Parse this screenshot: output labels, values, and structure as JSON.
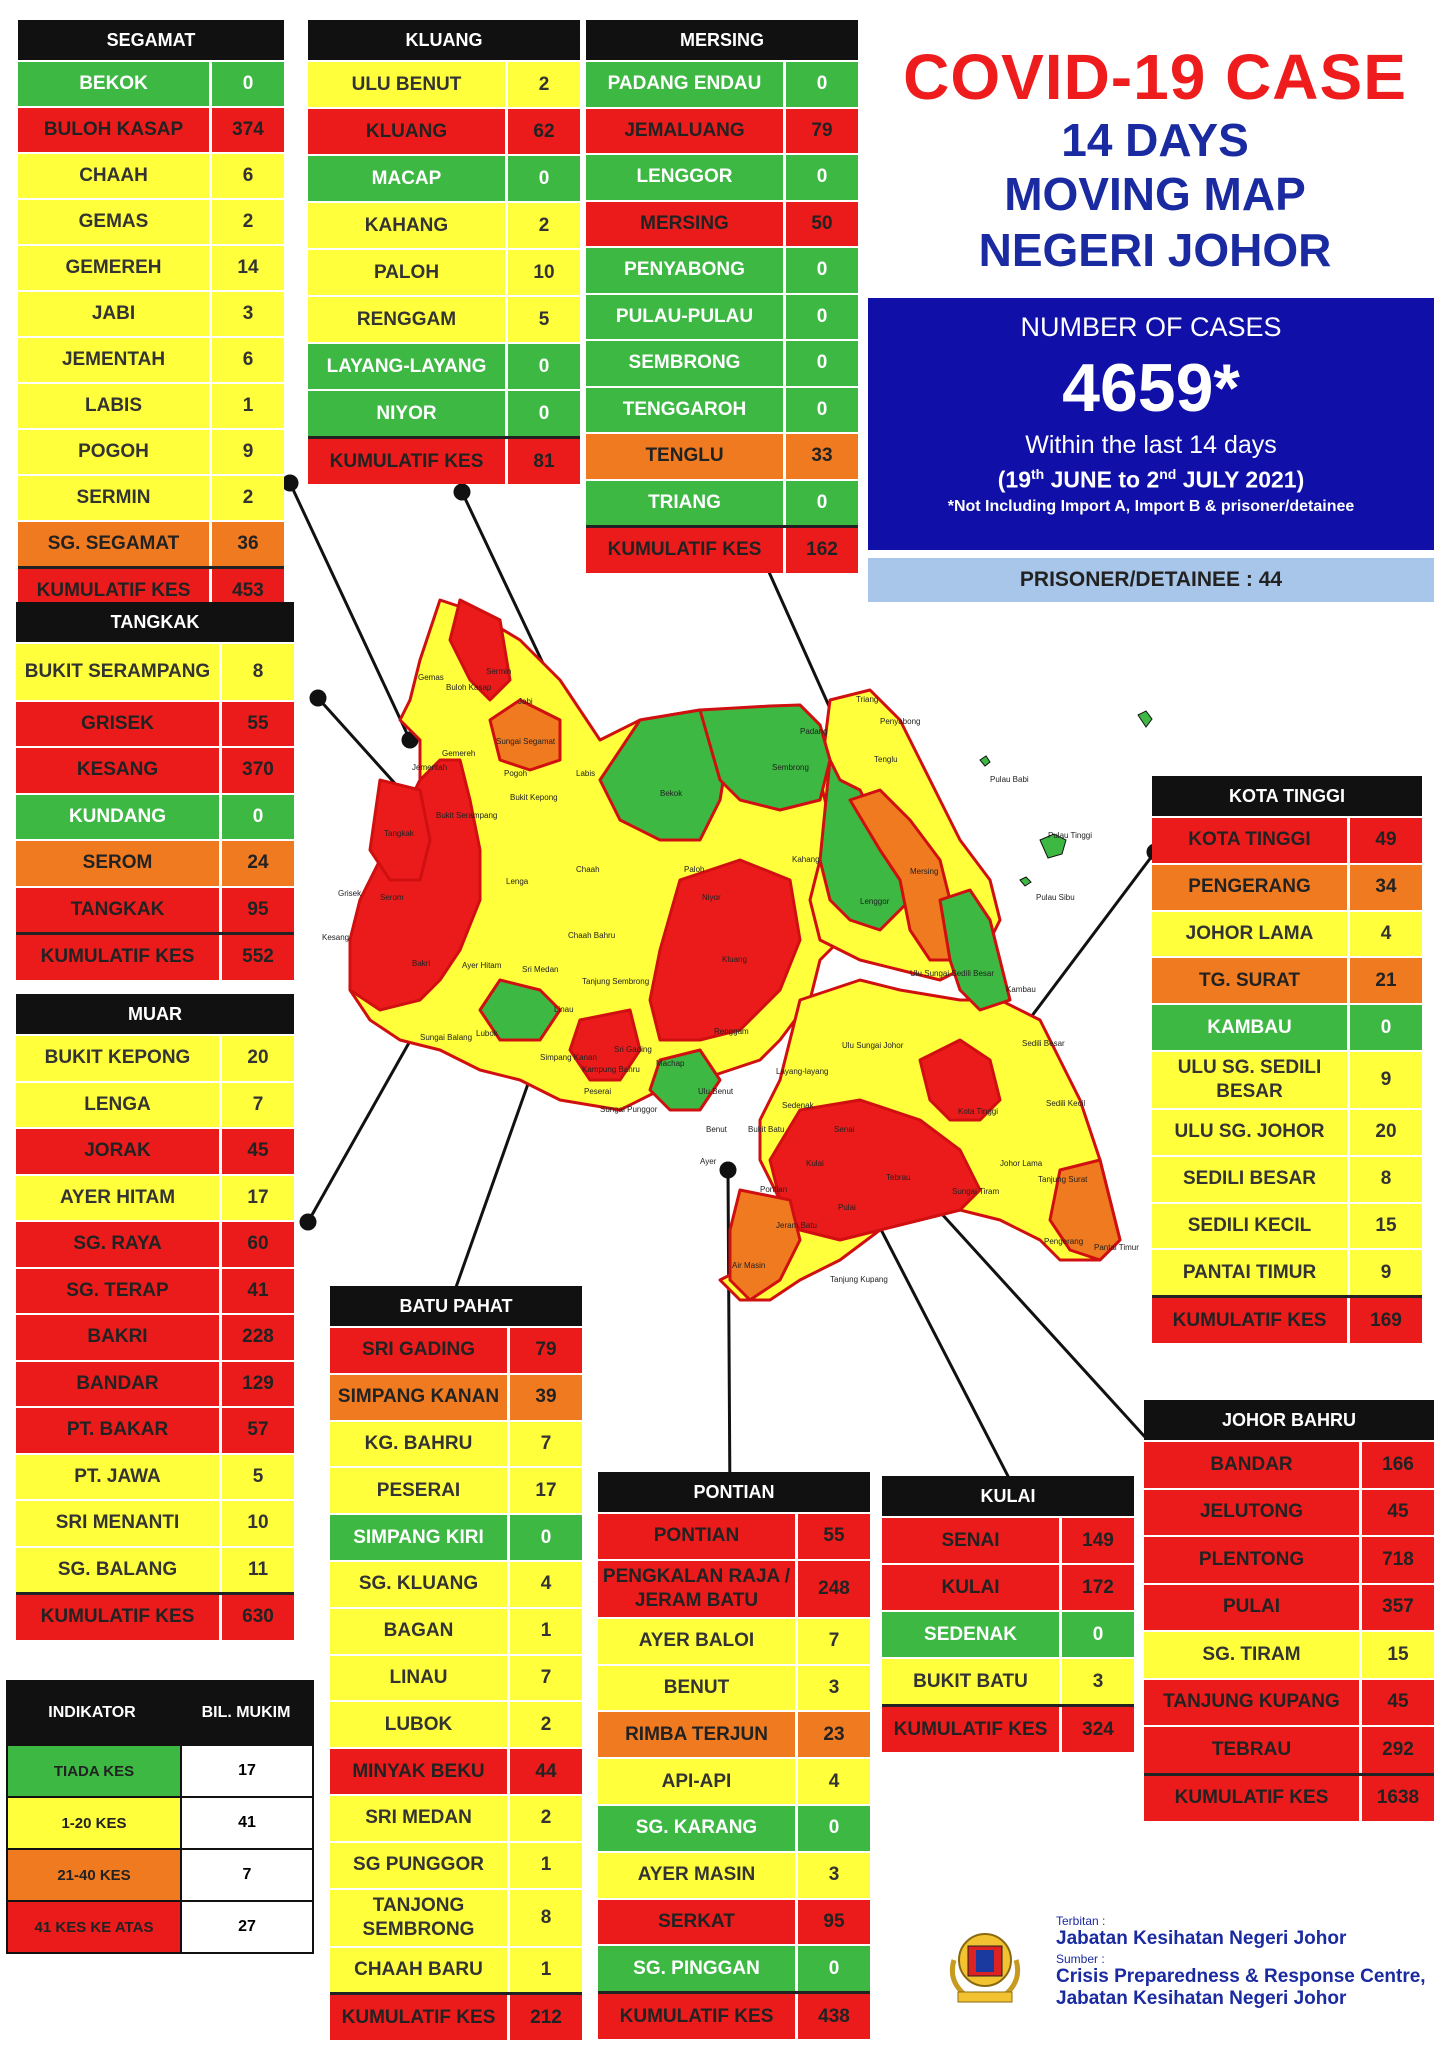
{
  "header": {
    "title": "COVID-19 CASE",
    "line1": "14 DAYS",
    "line2": "MOVING MAP",
    "line3": "NEGERI JOHOR"
  },
  "summary": {
    "label": "NUMBER OF CASES",
    "total": "4659*",
    "within": "Within the last 14 days",
    "range_open": "(19",
    "range_sup1": "th",
    "range_mid": " JUNE to 2",
    "range_sup2": "nd",
    "range_close": " JULY 2021)",
    "note": "*Not Including Import A, Import B & prisoner/detainee",
    "prisoner": "PRISONER/DETAINEE : 44"
  },
  "colors": {
    "green": "#3cb843",
    "yellow": "#ffff3c",
    "orange": "#f07a20",
    "red": "#ec1b1b",
    "navy": "#1010a8",
    "title_red": "#ee1c1c"
  },
  "districts": {
    "segamat": {
      "name": "SEGAMAT",
      "rows": [
        {
          "n": "BEKOK",
          "v": "0",
          "c": "g"
        },
        {
          "n": "BULOH KASAP",
          "v": "374",
          "c": "r"
        },
        {
          "n": "CHAAH",
          "v": "6",
          "c": "y"
        },
        {
          "n": "GEMAS",
          "v": "2",
          "c": "y"
        },
        {
          "n": "GEMEREH",
          "v": "14",
          "c": "y"
        },
        {
          "n": "JABI",
          "v": "3",
          "c": "y"
        },
        {
          "n": "JEMENTAH",
          "v": "6",
          "c": "y"
        },
        {
          "n": "LABIS",
          "v": "1",
          "c": "y"
        },
        {
          "n": "POGOH",
          "v": "9",
          "c": "y"
        },
        {
          "n": "SERMIN",
          "v": "2",
          "c": "y"
        },
        {
          "n": "SG. SEGAMAT",
          "v": "36",
          "c": "o"
        },
        {
          "n": "KUMULATIF KES",
          "v": "453",
          "c": "kum"
        }
      ]
    },
    "kluang": {
      "name": "KLUANG",
      "rows": [
        {
          "n": "ULU BENUT",
          "v": "2",
          "c": "y"
        },
        {
          "n": "KLUANG",
          "v": "62",
          "c": "r"
        },
        {
          "n": "MACAP",
          "v": "0",
          "c": "g"
        },
        {
          "n": "KAHANG",
          "v": "2",
          "c": "y"
        },
        {
          "n": "PALOH",
          "v": "10",
          "c": "y"
        },
        {
          "n": "RENGGAM",
          "v": "5",
          "c": "y"
        },
        {
          "n": "LAYANG-LAYANG",
          "v": "0",
          "c": "g"
        },
        {
          "n": "NIYOR",
          "v": "0",
          "c": "g"
        },
        {
          "n": "KUMULATIF KES",
          "v": "81",
          "c": "kum"
        }
      ]
    },
    "mersing": {
      "name": "MERSING",
      "rows": [
        {
          "n": "PADANG ENDAU",
          "v": "0",
          "c": "g"
        },
        {
          "n": "JEMALUANG",
          "v": "79",
          "c": "r"
        },
        {
          "n": "LENGGOR",
          "v": "0",
          "c": "g"
        },
        {
          "n": "MERSING",
          "v": "50",
          "c": "r"
        },
        {
          "n": "PENYABONG",
          "v": "0",
          "c": "g"
        },
        {
          "n": "PULAU-PULAU",
          "v": "0",
          "c": "g"
        },
        {
          "n": "SEMBRONG",
          "v": "0",
          "c": "g"
        },
        {
          "n": "TENGGAROH",
          "v": "0",
          "c": "g"
        },
        {
          "n": "TENGLU",
          "v": "33",
          "c": "o"
        },
        {
          "n": "TRIANG",
          "v": "0",
          "c": "g"
        },
        {
          "n": "KUMULATIF KES",
          "v": "162",
          "c": "kum"
        }
      ]
    },
    "tangkak": {
      "name": "TANGKAK",
      "rows": [
        {
          "n": "BUKIT SERAMPANG",
          "v": "8",
          "c": "y"
        },
        {
          "n": "GRISEK",
          "v": "55",
          "c": "r"
        },
        {
          "n": "KESANG",
          "v": "370",
          "c": "r"
        },
        {
          "n": "KUNDANG",
          "v": "0",
          "c": "g"
        },
        {
          "n": "SEROM",
          "v": "24",
          "c": "o"
        },
        {
          "n": "TANGKAK",
          "v": "95",
          "c": "r"
        },
        {
          "n": "KUMULATIF KES",
          "v": "552",
          "c": "kum"
        }
      ]
    },
    "muar": {
      "name": "MUAR",
      "rows": [
        {
          "n": "BUKIT KEPONG",
          "v": "20",
          "c": "y"
        },
        {
          "n": "LENGA",
          "v": "7",
          "c": "y"
        },
        {
          "n": "JORAK",
          "v": "45",
          "c": "r"
        },
        {
          "n": "AYER HITAM",
          "v": "17",
          "c": "y"
        },
        {
          "n": "SG. RAYA",
          "v": "60",
          "c": "r"
        },
        {
          "n": "SG. TERAP",
          "v": "41",
          "c": "r"
        },
        {
          "n": "BAKRI",
          "v": "228",
          "c": "r"
        },
        {
          "n": "BANDAR",
          "v": "129",
          "c": "r"
        },
        {
          "n": "PT. BAKAR",
          "v": "57",
          "c": "r"
        },
        {
          "n": "PT. JAWA",
          "v": "5",
          "c": "y"
        },
        {
          "n": "SRI MENANTI",
          "v": "10",
          "c": "y"
        },
        {
          "n": "SG. BALANG",
          "v": "11",
          "c": "y"
        },
        {
          "n": "KUMULATIF KES",
          "v": "630",
          "c": "kum"
        }
      ]
    },
    "batupahat": {
      "name": "BATU PAHAT",
      "rows": [
        {
          "n": "SRI GADING",
          "v": "79",
          "c": "r"
        },
        {
          "n": "SIMPANG KANAN",
          "v": "39",
          "c": "o"
        },
        {
          "n": "KG. BAHRU",
          "v": "7",
          "c": "y"
        },
        {
          "n": "PESERAI",
          "v": "17",
          "c": "y"
        },
        {
          "n": "SIMPANG KIRI",
          "v": "0",
          "c": "g"
        },
        {
          "n": "SG. KLUANG",
          "v": "4",
          "c": "y"
        },
        {
          "n": "BAGAN",
          "v": "1",
          "c": "y"
        },
        {
          "n": "LINAU",
          "v": "7",
          "c": "y"
        },
        {
          "n": "LUBOK",
          "v": "2",
          "c": "y"
        },
        {
          "n": "MINYAK BEKU",
          "v": "44",
          "c": "r"
        },
        {
          "n": "SRI MEDAN",
          "v": "2",
          "c": "y"
        },
        {
          "n": "SG PUNGGOR",
          "v": "1",
          "c": "y"
        },
        {
          "n": "TANJONG SEMBRONG",
          "v": "8",
          "c": "y"
        },
        {
          "n": "CHAAH BARU",
          "v": "1",
          "c": "y"
        },
        {
          "n": "KUMULATIF KES",
          "v": "212",
          "c": "kum"
        }
      ]
    },
    "pontian": {
      "name": "PONTIAN",
      "rows": [
        {
          "n": "PONTIAN",
          "v": "55",
          "c": "r"
        },
        {
          "n": "PENGKALAN RAJA / JERAM BATU",
          "v": "248",
          "c": "r"
        },
        {
          "n": "AYER BALOI",
          "v": "7",
          "c": "y"
        },
        {
          "n": "BENUT",
          "v": "3",
          "c": "y"
        },
        {
          "n": "RIMBA TERJUN",
          "v": "23",
          "c": "o"
        },
        {
          "n": "API-API",
          "v": "4",
          "c": "y"
        },
        {
          "n": "SG. KARANG",
          "v": "0",
          "c": "g"
        },
        {
          "n": "AYER MASIN",
          "v": "3",
          "c": "y"
        },
        {
          "n": "SERKAT",
          "v": "95",
          "c": "r"
        },
        {
          "n": "SG. PINGGAN",
          "v": "0",
          "c": "g"
        },
        {
          "n": "KUMULATIF KES",
          "v": "438",
          "c": "kum"
        }
      ]
    },
    "kulai": {
      "name": "KULAI",
      "rows": [
        {
          "n": "SENAI",
          "v": "149",
          "c": "r"
        },
        {
          "n": "KULAI",
          "v": "172",
          "c": "r"
        },
        {
          "n": "SEDENAK",
          "v": "0",
          "c": "g"
        },
        {
          "n": "BUKIT BATU",
          "v": "3",
          "c": "y"
        },
        {
          "n": "KUMULATIF KES",
          "v": "324",
          "c": "kum"
        }
      ]
    },
    "kotatinggi": {
      "name": "KOTA TINGGI",
      "rows": [
        {
          "n": "KOTA TINGGI",
          "v": "49",
          "c": "r"
        },
        {
          "n": "PENGERANG",
          "v": "34",
          "c": "o"
        },
        {
          "n": "JOHOR LAMA",
          "v": "4",
          "c": "y"
        },
        {
          "n": "TG. SURAT",
          "v": "21",
          "c": "o"
        },
        {
          "n": "KAMBAU",
          "v": "0",
          "c": "g"
        },
        {
          "n": "ULU SG. SEDILI BESAR",
          "v": "9",
          "c": "y"
        },
        {
          "n": "ULU SG. JOHOR",
          "v": "20",
          "c": "y"
        },
        {
          "n": "SEDILI BESAR",
          "v": "8",
          "c": "y"
        },
        {
          "n": "SEDILI KECIL",
          "v": "15",
          "c": "y"
        },
        {
          "n": "PANTAI TIMUR",
          "v": "9",
          "c": "y"
        },
        {
          "n": "KUMULATIF KES",
          "v": "169",
          "c": "kum"
        }
      ]
    },
    "johorbahru": {
      "name": "JOHOR BAHRU",
      "rows": [
        {
          "n": "BANDAR",
          "v": "166",
          "c": "r"
        },
        {
          "n": "JELUTONG",
          "v": "45",
          "c": "r"
        },
        {
          "n": "PLENTONG",
          "v": "718",
          "c": "r"
        },
        {
          "n": "PULAI",
          "v": "357",
          "c": "r"
        },
        {
          "n": "SG. TIRAM",
          "v": "15",
          "c": "y"
        },
        {
          "n": "TANJUNG KUPANG",
          "v": "45",
          "c": "r"
        },
        {
          "n": "TEBRAU",
          "v": "292",
          "c": "r"
        },
        {
          "n": "KUMULATIF KES",
          "v": "1638",
          "c": "kum"
        }
      ]
    }
  },
  "legend": {
    "h1": "INDIKATOR",
    "h2": "BIL. MUKIM",
    "rows": [
      {
        "n": "TIADA KES",
        "v": "17",
        "c": "g"
      },
      {
        "n": "1-20 KES",
        "v": "41",
        "c": "y"
      },
      {
        "n": "21-40 KES",
        "v": "7",
        "c": "o"
      },
      {
        "n": "41 KES KE ATAS",
        "v": "27",
        "c": "r"
      }
    ]
  },
  "credit": {
    "terbitan_label": "Terbitan :",
    "terbitan": "Jabatan Kesihatan Negeri Johor",
    "sumber_label": "Sumber :",
    "sumber1": "Crisis Preparedness & Response Centre,",
    "sumber2": "Jabatan Kesihatan Negeri Johor"
  },
  "map_labels": {
    "gemas": "Gemas",
    "buloh_kasap": "Buloh Kasap",
    "sermin": "Sermin",
    "jabi": "Jabi",
    "sungai_segamat": "Sungai Segamat",
    "gemereh": "Gemereh",
    "jementah": "Jementah",
    "pogoh": "Pogoh",
    "labis": "Labis",
    "bekok": "Bekok",
    "sembrong": "Sembrong",
    "padang": "Padang",
    "triang": "Triang",
    "penyabong": "Penyabong",
    "tenglu": "Tenglu",
    "pulau_babi": "Pulau Babi",
    "pulau_tinggi": "Pulau Tinggi",
    "pulau_sibu": "Pulau Sibu",
    "bukit_serampang": "Bukit Serampang",
    "bukit_kepong": "Bukit Kepong",
    "tangkak": "Tangkak",
    "lenga": "Lenga",
    "chaah": "Chaah",
    "paloh": "Paloh",
    "kahang": "Kahang",
    "niyor": "Niyor",
    "lenggor": "Lenggor",
    "mersing": "Mersing",
    "serom": "Serom",
    "grisek": "Grisek",
    "kesang": "Kesang",
    "ayer_hitam": "Ayer Hitam",
    "sri_medan": "Sri Medan",
    "chaah_bahru": "Chaah Bahru",
    "tanjung_sembrong": "Tanjung Sembrong",
    "kluang": "Kluang",
    "renggam": "Renggam",
    "ulu_sungai_sedili": "Ulu Sungai Sedili Besar",
    "kambau": "Kambau",
    "ulu_sungai_johor": "Ulu Sungai Johor",
    "sedili_besar": "Sedili Besar",
    "sedili_kecil": "Sedili Kecil",
    "kota_tinggi": "Kota Tinggi",
    "johor_lama": "Johor Lama",
    "tanjung_surat": "Tanjung Surat",
    "pengerang": "Pengerang",
    "pantai_timur": "Pantai Timur",
    "sri_gading": "Sri Gading",
    "layang_layang": "Layang-layang",
    "sedenak": "Sedenak",
    "ulu_benut": "Ulu Benut",
    "machap": "Machap",
    "benut": "Benut",
    "ayer": "Ayer",
    "pontian": "Pontian",
    "jeram_batu": "Jeram Batu",
    "senai": "Senai",
    "kulai": "Kulai",
    "tebrau": "Tebrau",
    "sungai_tiram": "Sungai Tiram",
    "tanjung_kupang": "Tanjung Kupang",
    "air_masin": "Air Masin",
    "bakri": "Bakri",
    "linau": "Linau",
    "simpang_kanan": "Simpang Kanan",
    "peserai": "Peserai",
    "kampung_bahru": "Kampung Bahru",
    "lubok": "Lubok",
    "sungai_balang": "Sungai Balang",
    "sungai_punggor": "Sungai Punggor",
    "pulai": "Pulai",
    "bukit_batu": "Bukit Batu"
  }
}
